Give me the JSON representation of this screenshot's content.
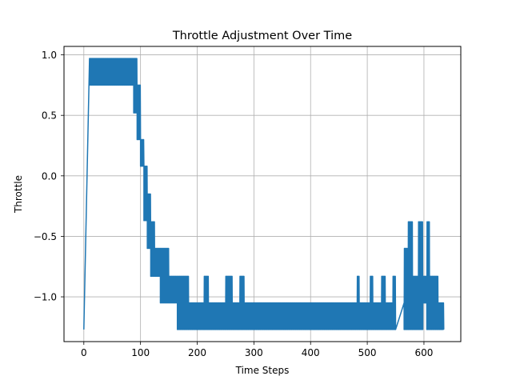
{
  "chart_data": {
    "type": "line",
    "title": "Throttle Adjustment Over Time",
    "xlabel": "Time Steps",
    "ylabel": "Throttle",
    "xlim": [
      -35,
      665
    ],
    "ylim": [
      -1.37,
      1.07
    ],
    "xticks": [
      0,
      100,
      200,
      300,
      400,
      500,
      600
    ],
    "yticks": [
      1.0,
      0.5,
      0.0,
      -0.5,
      -1.0
    ],
    "ytick_labels": [
      "1.0",
      "0.5",
      "0.0",
      "−0.5",
      "−1.0"
    ],
    "grid": true,
    "legend": "none",
    "series": [
      {
        "color": "#1f77b4",
        "segments": [
          {
            "x": [
              0,
              10
            ],
            "y": [
              -1.27,
              0.97
            ],
            "pattern": "line"
          },
          {
            "x": [
              10,
              88
            ],
            "y": [
              0.75,
              0.97
            ],
            "pattern": "band"
          },
          {
            "x": [
              88,
              94
            ],
            "y": [
              0.52,
              0.97
            ],
            "pattern": "band"
          },
          {
            "x": [
              94,
              100
            ],
            "y": [
              0.3,
              0.75
            ],
            "pattern": "band"
          },
          {
            "x": [
              100,
              106
            ],
            "y": [
              0.08,
              0.3
            ],
            "pattern": "band"
          },
          {
            "x": [
              106,
              112
            ],
            "y": [
              -0.37,
              0.08
            ],
            "pattern": "band"
          },
          {
            "x": [
              112,
              118
            ],
            "y": [
              -0.6,
              -0.15
            ],
            "pattern": "band"
          },
          {
            "x": [
              118,
              125
            ],
            "y": [
              -0.83,
              -0.38
            ],
            "pattern": "band"
          },
          {
            "x": [
              125,
              135
            ],
            "y": [
              -0.83,
              -0.6
            ],
            "pattern": "band"
          },
          {
            "x": [
              135,
              150
            ],
            "y": [
              -1.05,
              -0.6
            ],
            "pattern": "band"
          },
          {
            "x": [
              150,
              165
            ],
            "y": [
              -1.05,
              -0.83
            ],
            "pattern": "band"
          },
          {
            "x": [
              165,
              185
            ],
            "y": [
              -1.27,
              -0.83
            ],
            "pattern": "band"
          },
          {
            "x": [
              185,
              212
            ],
            "y": [
              -1.27,
              -1.05
            ],
            "pattern": "band"
          },
          {
            "x": [
              212,
              220
            ],
            "y": [
              -1.27,
              -0.83
            ],
            "pattern": "band"
          },
          {
            "x": [
              220,
              250
            ],
            "y": [
              -1.27,
              -1.05
            ],
            "pattern": "band"
          },
          {
            "x": [
              250,
              262
            ],
            "y": [
              -1.27,
              -0.83
            ],
            "pattern": "band"
          },
          {
            "x": [
              262,
              275
            ],
            "y": [
              -1.27,
              -1.05
            ],
            "pattern": "band"
          },
          {
            "x": [
              275,
              283
            ],
            "y": [
              -1.27,
              -0.83
            ],
            "pattern": "band"
          },
          {
            "x": [
              283,
              482
            ],
            "y": [
              -1.27,
              -1.05
            ],
            "pattern": "band"
          },
          {
            "x": [
              482,
              486
            ],
            "y": [
              -1.27,
              -0.83
            ],
            "pattern": "band"
          },
          {
            "x": [
              486,
              505
            ],
            "y": [
              -1.27,
              -1.05
            ],
            "pattern": "band"
          },
          {
            "x": [
              505,
              510
            ],
            "y": [
              -1.27,
              -0.83
            ],
            "pattern": "band"
          },
          {
            "x": [
              510,
              525
            ],
            "y": [
              -1.27,
              -1.05
            ],
            "pattern": "band"
          },
          {
            "x": [
              525,
              532
            ],
            "y": [
              -1.27,
              -0.83
            ],
            "pattern": "band"
          },
          {
            "x": [
              532,
              545
            ],
            "y": [
              -1.27,
              -1.05
            ],
            "pattern": "band"
          },
          {
            "x": [
              545,
              550
            ],
            "y": [
              -1.27,
              -0.83
            ],
            "pattern": "band"
          },
          {
            "x": [
              550,
              565
            ],
            "y": [
              -1.27,
              -1.05
            ],
            "pattern": "line"
          },
          {
            "x": [
              565,
              572
            ],
            "y": [
              -1.27,
              -0.6
            ],
            "pattern": "band"
          },
          {
            "x": [
              572,
              580
            ],
            "y": [
              -1.27,
              -0.38
            ],
            "pattern": "band"
          },
          {
            "x": [
              580,
              590
            ],
            "y": [
              -1.27,
              -0.83
            ],
            "pattern": "band"
          },
          {
            "x": [
              590,
              598
            ],
            "y": [
              -1.27,
              -0.38
            ],
            "pattern": "band"
          },
          {
            "x": [
              598,
              605
            ],
            "y": [
              -1.05,
              -0.83
            ],
            "pattern": "band"
          },
          {
            "x": [
              605,
              610
            ],
            "y": [
              -1.27,
              -0.38
            ],
            "pattern": "band"
          },
          {
            "x": [
              610,
              625
            ],
            "y": [
              -1.27,
              -0.83
            ],
            "pattern": "band"
          },
          {
            "x": [
              625,
              635
            ],
            "y": [
              -1.27,
              -1.05
            ],
            "pattern": "band"
          }
        ]
      }
    ]
  }
}
